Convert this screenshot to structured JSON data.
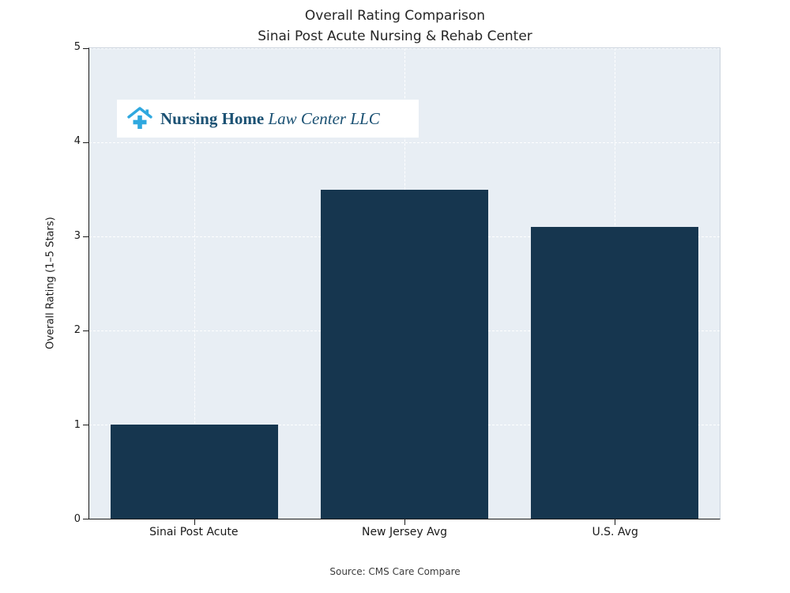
{
  "title": {
    "line1": "Overall Rating Comparison",
    "line2": "Sinai Post Acute Nursing & Rehab Center"
  },
  "watermark": {
    "bold": "Nursing Home",
    "italic": " Law Center LLC"
  },
  "source": "Source: CMS Care Compare",
  "chart_data": {
    "type": "bar",
    "categories": [
      "Sinai Post Acute",
      "New Jersey Avg",
      "U.S. Avg"
    ],
    "values": [
      1.0,
      3.5,
      3.1
    ],
    "title": "Overall Rating Comparison — Sinai Post Acute Nursing & Rehab Center",
    "xlabel": "",
    "ylabel": "Overall Rating (1–5 Stars)",
    "ylim": [
      0,
      5
    ],
    "yticks": [
      0,
      1,
      2,
      3,
      4,
      5
    ],
    "grid": true,
    "legend": "none",
    "bar_color": "#16364f",
    "plot_bg": "#e8eef4"
  }
}
